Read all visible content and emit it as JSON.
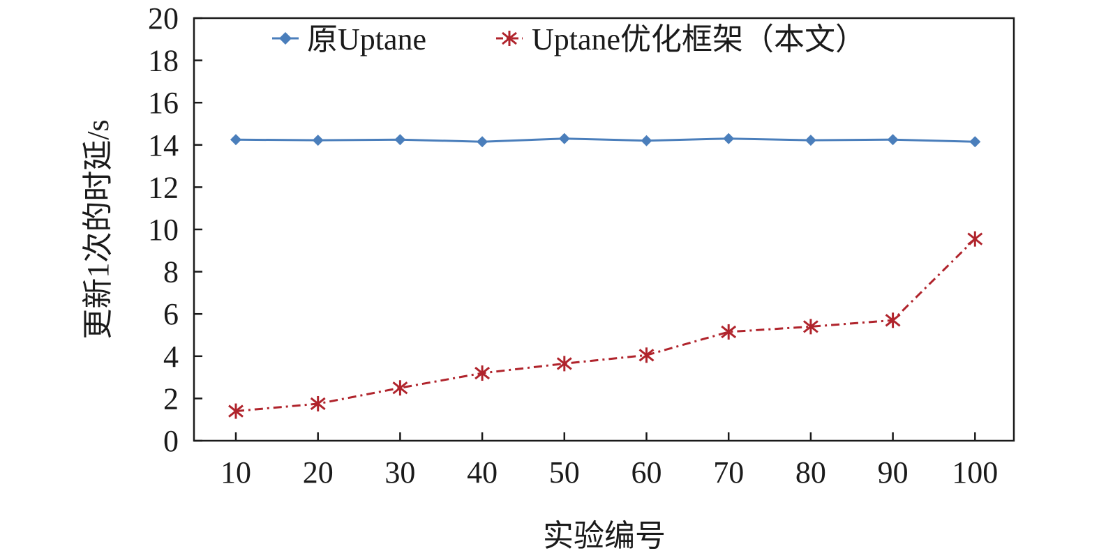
{
  "chart_data": {
    "type": "line",
    "xlabel": "实验编号",
    "ylabel": "更新1次的时延/s",
    "ylim": [
      0,
      20
    ],
    "yticks": [
      "0",
      "2",
      "4",
      "6",
      "8",
      "10",
      "12",
      "14",
      "16",
      "18",
      "20"
    ],
    "categories": [
      "10",
      "20",
      "30",
      "40",
      "50",
      "60",
      "70",
      "80",
      "90",
      "100"
    ],
    "grid": false,
    "legend_position": "top",
    "series": [
      {
        "name": "原Uptane",
        "color": "#4a7ebb",
        "marker": "diamond",
        "line_style": "solid",
        "values": [
          14.25,
          14.22,
          14.25,
          14.15,
          14.3,
          14.2,
          14.3,
          14.22,
          14.25,
          14.15
        ]
      },
      {
        "name": "Uptane优化框架（本文）",
        "color": "#b0242c",
        "marker": "asterisk",
        "line_style": "dash-dot",
        "values": [
          1.4,
          1.75,
          2.5,
          3.2,
          3.65,
          4.05,
          5.15,
          5.4,
          5.7,
          9.55
        ]
      }
    ]
  }
}
